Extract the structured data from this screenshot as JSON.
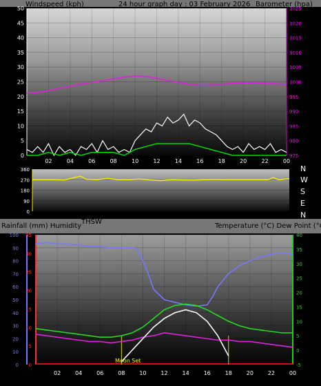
{
  "colors": {
    "wind_gust": "#ffffff",
    "wind_avg": "#00dd00",
    "barometer": "#dd22dd",
    "barometer_axis": "#ff00ff",
    "wind_dir": "#eeee00",
    "humidity": "#7777ff",
    "rainfall_axis": "#ff3030",
    "temperature": "#22dd22",
    "dew_point": "#dd22dd",
    "thsw": "#ffffff",
    "solar": "#cccccc",
    "moon": "#dddd00",
    "rain_bar": "#cc1111"
  },
  "charts": {
    "top": {
      "left_label": "Windspeed (kph)",
      "title": "24 hour graph day : 03 February 2026",
      "right_label": "Barometer (hpa)"
    },
    "mid": {
      "dir_labels": [
        "N",
        "W",
        "S",
        "E",
        "N"
      ]
    },
    "bottom": {
      "left_label": "Rainfall (mm)  Humidity",
      "thsw_label": "THSW",
      "right_label": "Temperature (°C) Dew Point (°C)",
      "moon_label": "Moon Set"
    }
  },
  "chart_data": [
    {
      "type": "line",
      "title": "24 hour graph day : 03 February 2026",
      "xlabel": "",
      "ylabel": "Windspeed (kph)",
      "y2label": "Barometer (hpa)",
      "x_ticks": [
        "02",
        "04",
        "06",
        "08",
        "10",
        "12",
        "14",
        "16",
        "18",
        "20",
        "22",
        "00"
      ],
      "y_ticks": [
        0,
        5,
        10,
        15,
        20,
        25,
        30,
        35,
        40,
        45,
        50
      ],
      "y2_ticks": [
        975,
        980,
        985,
        990,
        995,
        1000,
        1005,
        1010,
        1015,
        1020,
        1025
      ],
      "ylim": [
        0,
        50
      ],
      "y2lim": [
        975,
        1025
      ],
      "xlim": [
        0,
        24
      ],
      "series": [
        {
          "name": "Barometer",
          "axis": "right",
          "x": [
            0,
            1,
            2,
            3,
            4,
            5,
            6,
            7,
            8,
            9,
            10,
            11,
            12,
            13,
            14,
            15,
            16,
            17,
            18,
            19,
            20,
            21,
            22,
            23,
            24
          ],
          "y": [
            996.2,
            996.4,
            997,
            997.8,
            998.5,
            999.2,
            999.8,
            1000.4,
            1001,
            1001.6,
            1002,
            1001.8,
            1001.2,
            1000.5,
            999.8,
            999.2,
            998.8,
            998.9,
            999.2,
            999.5,
            999.6,
            999.6,
            999.5,
            999.4,
            999.2
          ]
        },
        {
          "name": "Wind gust",
          "axis": "left",
          "x": [
            0,
            0.5,
            1,
            1.5,
            2,
            2.5,
            3,
            3.5,
            4,
            4.5,
            5,
            5.5,
            6,
            6.5,
            7,
            7.5,
            8,
            8.5,
            9,
            9.5,
            10,
            10.5,
            11,
            11.5,
            12,
            12.5,
            13,
            13.5,
            14,
            14.5,
            15,
            15.5,
            16,
            16.5,
            17,
            17.5,
            18,
            18.5,
            19,
            19.5,
            20,
            20.5,
            21,
            21.5,
            22,
            22.5,
            23,
            23.5,
            24
          ],
          "y": [
            2,
            1,
            3,
            1,
            4,
            0,
            3,
            1,
            2,
            0,
            3,
            2,
            4,
            1,
            5,
            2,
            3,
            1,
            2,
            1,
            5,
            7,
            9,
            8,
            11,
            10,
            13,
            11,
            12,
            14,
            10,
            12,
            11,
            9,
            8,
            7,
            5,
            3,
            2,
            3,
            1,
            4,
            2,
            3,
            2,
            4,
            1,
            2,
            1
          ]
        },
        {
          "name": "Wind average",
          "axis": "left",
          "x": [
            0,
            1,
            2,
            3,
            4,
            5,
            6,
            7,
            8,
            9,
            10,
            11,
            12,
            13,
            14,
            15,
            16,
            17,
            18,
            19,
            20,
            21,
            22,
            23,
            24
          ],
          "y": [
            0,
            0,
            1,
            0,
            1,
            0,
            1,
            1,
            1,
            0,
            2,
            3,
            4,
            4,
            4,
            4,
            3,
            2,
            1,
            0,
            0,
            0,
            0,
            0,
            0
          ]
        }
      ]
    },
    {
      "type": "scatter",
      "ylabel": "Wind direction",
      "y_ticks": [
        0,
        90,
        180,
        270,
        360
      ],
      "ylim": [
        0,
        360
      ],
      "xlim": [
        0,
        24
      ],
      "series": [
        {
          "name": "Wind direction",
          "x": [
            0,
            1,
            2,
            3,
            4,
            4.5,
            5,
            6,
            7,
            8,
            9,
            10,
            11,
            12,
            13,
            14,
            15,
            16,
            17,
            18,
            19,
            20,
            21,
            22,
            22.5,
            23,
            24
          ],
          "y": [
            270,
            270,
            270,
            268,
            290,
            300,
            275,
            270,
            282,
            270,
            270,
            276,
            268,
            262,
            270,
            268,
            266,
            270,
            272,
            270,
            270,
            270,
            270,
            270,
            288,
            270,
            280
          ]
        }
      ]
    },
    {
      "type": "line",
      "xlabel": "",
      "ylabel": "Rainfall (mm)  Humidity",
      "y2label": "Temperature (°C) Dew Point (°C)",
      "x_ticks": [
        "02",
        "04",
        "06",
        "08",
        "10",
        "12",
        "14",
        "16",
        "18",
        "20",
        "22",
        "00"
      ],
      "humidity_ticks": [
        0,
        10,
        20,
        30,
        40,
        50,
        60,
        70,
        80,
        90,
        100
      ],
      "rain_ticks": [
        0,
        5,
        10,
        15,
        20,
        25,
        30,
        35
      ],
      "temp_ticks": [
        -5,
        0,
        5,
        10,
        15,
        20,
        25,
        30,
        35,
        40
      ],
      "humidity_lim": [
        0,
        100
      ],
      "temp_lim": [
        -5,
        40
      ],
      "xlim": [
        0,
        24
      ],
      "series": [
        {
          "name": "Humidity",
          "axis": "humidity",
          "x": [
            0,
            1,
            2,
            3,
            4,
            5,
            6,
            7,
            8,
            9,
            9.5,
            10,
            10.5,
            11,
            12,
            13,
            14,
            15,
            16,
            16.5,
            17,
            18,
            19,
            20,
            21,
            22,
            23,
            24
          ],
          "y": [
            93,
            94,
            93,
            93,
            92,
            91,
            91,
            90,
            90,
            90,
            89,
            80,
            70,
            58,
            50,
            48,
            46,
            45,
            46,
            52,
            60,
            70,
            76,
            80,
            83,
            85,
            86,
            85
          ]
        },
        {
          "name": "Temperature",
          "axis": "temp",
          "x": [
            0,
            1,
            2,
            3,
            4,
            5,
            6,
            7,
            8,
            9,
            10,
            11,
            12,
            13,
            14,
            15,
            16,
            17,
            18,
            19,
            20,
            21,
            22,
            23,
            24
          ],
          "y": [
            7.5,
            7,
            6.5,
            6,
            5.5,
            5,
            4.5,
            4.5,
            5,
            6,
            8,
            11,
            14,
            15.5,
            16,
            15.5,
            14,
            12,
            10,
            8.5,
            7.5,
            7,
            6.5,
            6,
            6
          ]
        },
        {
          "name": "Dew Point",
          "axis": "temp",
          "x": [
            0,
            1,
            2,
            3,
            4,
            5,
            6,
            7,
            8,
            9,
            10,
            11,
            12,
            13,
            14,
            15,
            16,
            17,
            18,
            19,
            20,
            21,
            22,
            23,
            24
          ],
          "y": [
            5.5,
            5,
            4.5,
            4,
            3.5,
            3,
            3,
            2.5,
            3,
            3.5,
            4.5,
            5,
            6,
            5.5,
            5,
            4.5,
            4,
            3.5,
            3.5,
            3,
            3,
            2.5,
            2,
            1.5,
            1
          ]
        },
        {
          "name": "THSW",
          "axis": "temp",
          "x": [
            8,
            9,
            10,
            11,
            12,
            13,
            14,
            15,
            16,
            17,
            18
          ],
          "y": [
            -4,
            0,
            4,
            8,
            11,
            13,
            14,
            13,
            10,
            5,
            -2
          ]
        }
      ],
      "markers": {
        "moon_set_hour": 8,
        "markers_hours": [
          8,
          18
        ]
      }
    }
  ]
}
